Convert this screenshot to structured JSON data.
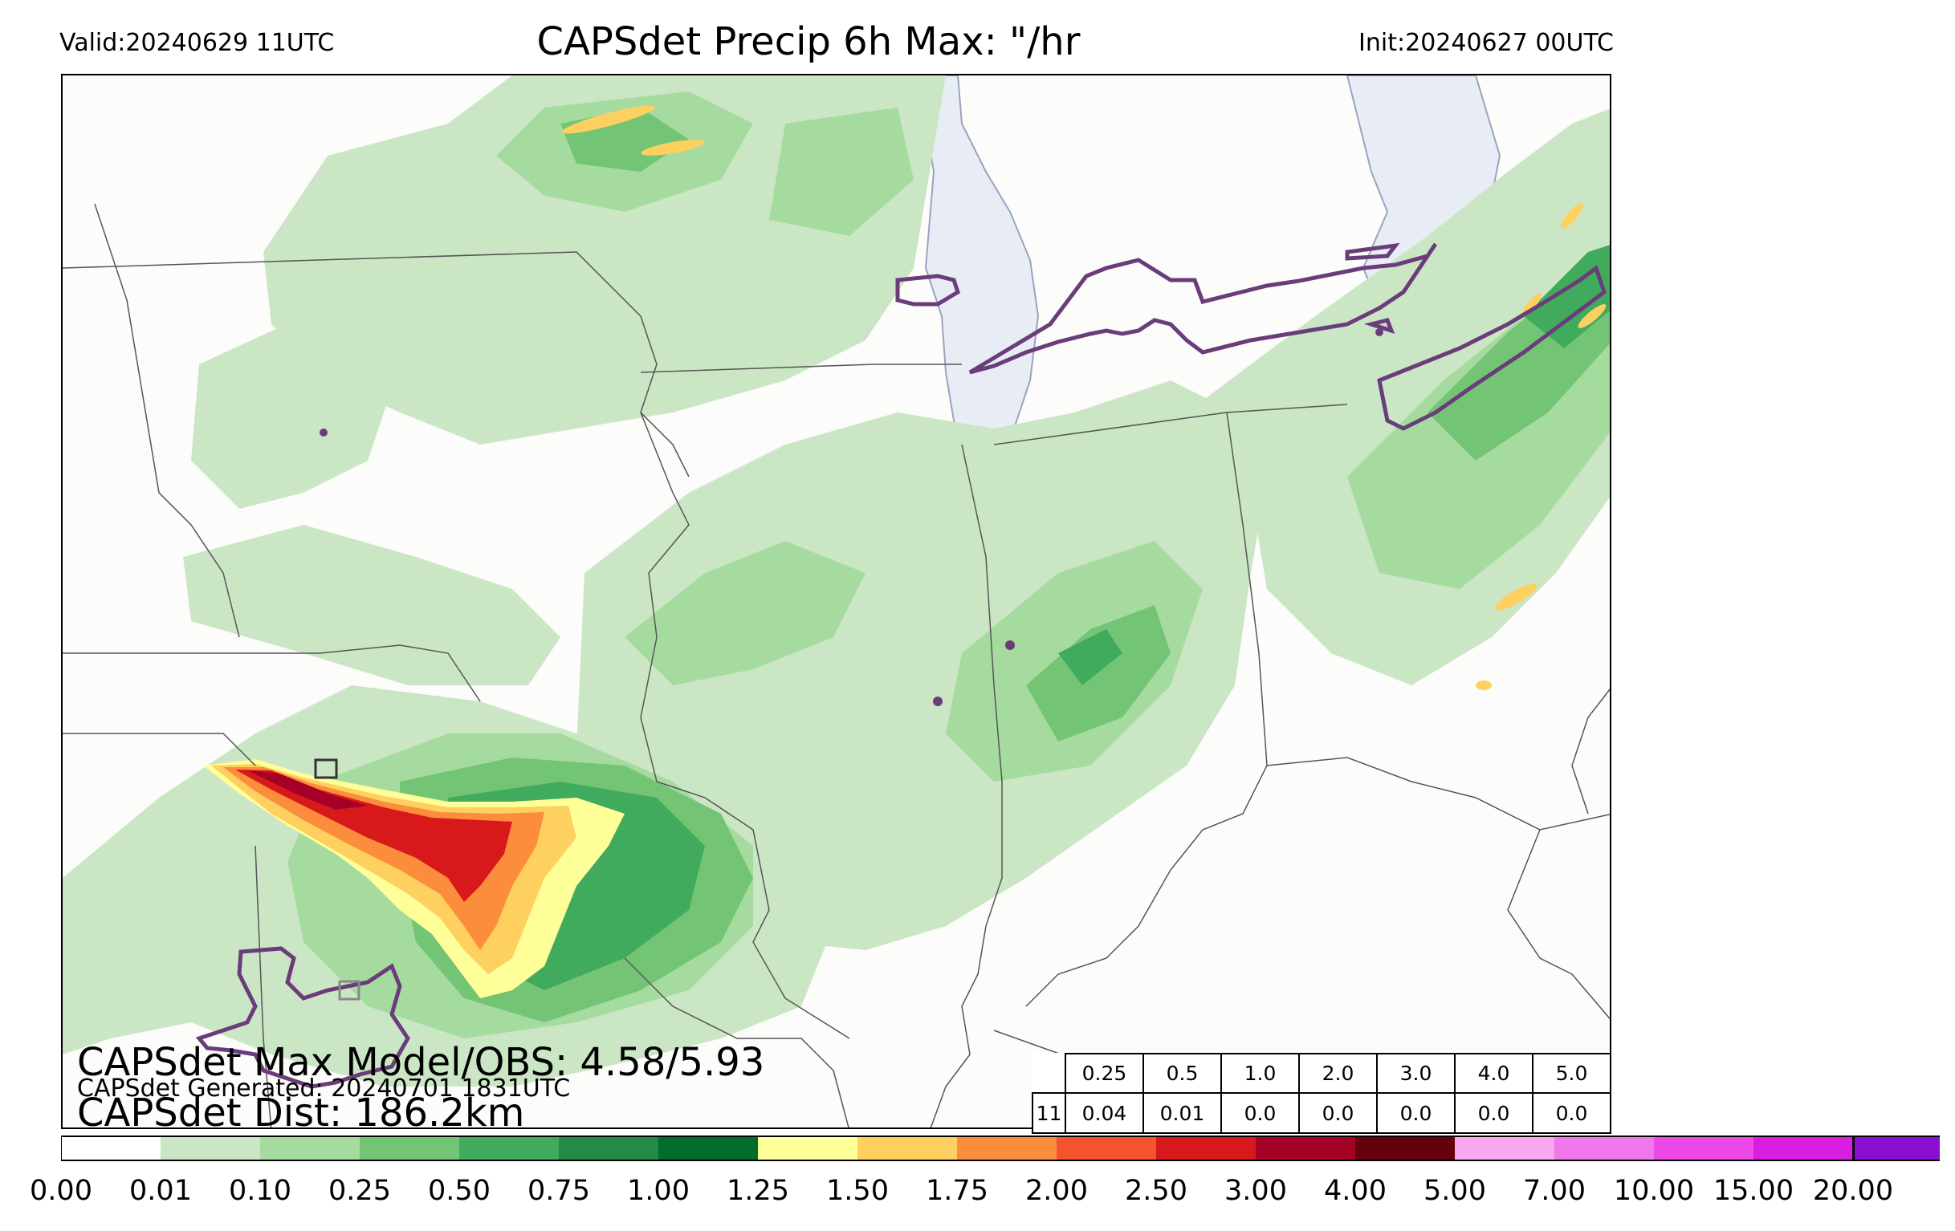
{
  "header": {
    "valid": "Valid:20240629 11UTC",
    "title": "CAPSdet Precip 6h Max: \"/hr",
    "init": "Init:20240627 00UTC"
  },
  "stats": {
    "max_model_obs": "CAPSdet Max Model/OBS: 4.58/5.93",
    "generated": "CAPSdet Generated: 20240701 1831UTC",
    "dist": "CAPSdet Dist: 186.2km"
  },
  "threshold_table": {
    "headers": [
      "0.25",
      "0.5",
      "1.0",
      "2.0",
      "3.0",
      "4.0",
      "5.0"
    ],
    "row_label": "11",
    "values": [
      "0.04",
      "0.01",
      "0.0",
      "0.0",
      "0.0",
      "0.0",
      "0.0"
    ]
  },
  "colorbar": {
    "ticks": [
      "0.00",
      "0.01",
      "0.10",
      "0.25",
      "0.50",
      "0.75",
      "1.00",
      "1.25",
      "1.50",
      "1.75",
      "2.00",
      "2.50",
      "3.00",
      "4.00",
      "5.00",
      "7.00",
      "10.00",
      "15.00",
      "20.00"
    ],
    "colors": [
      "#ffffff",
      "#cbe6c5",
      "#a6dba0",
      "#74c476",
      "#41ab5d",
      "#238b45",
      "#006d2c",
      "#ffff99",
      "#fdd060",
      "#fc8d3c",
      "#f4532d",
      "#d7191c",
      "#a50026",
      "#67000d",
      "#f8a8f0",
      "#f078ec",
      "#ec49e8",
      "#d91ee0",
      "#8a0fd0"
    ]
  },
  "map_colors": {
    "background": "#fcfcfb",
    "lake": "#e8edf5",
    "border": "#555555",
    "obs_contour": "#6a3d7a"
  }
}
